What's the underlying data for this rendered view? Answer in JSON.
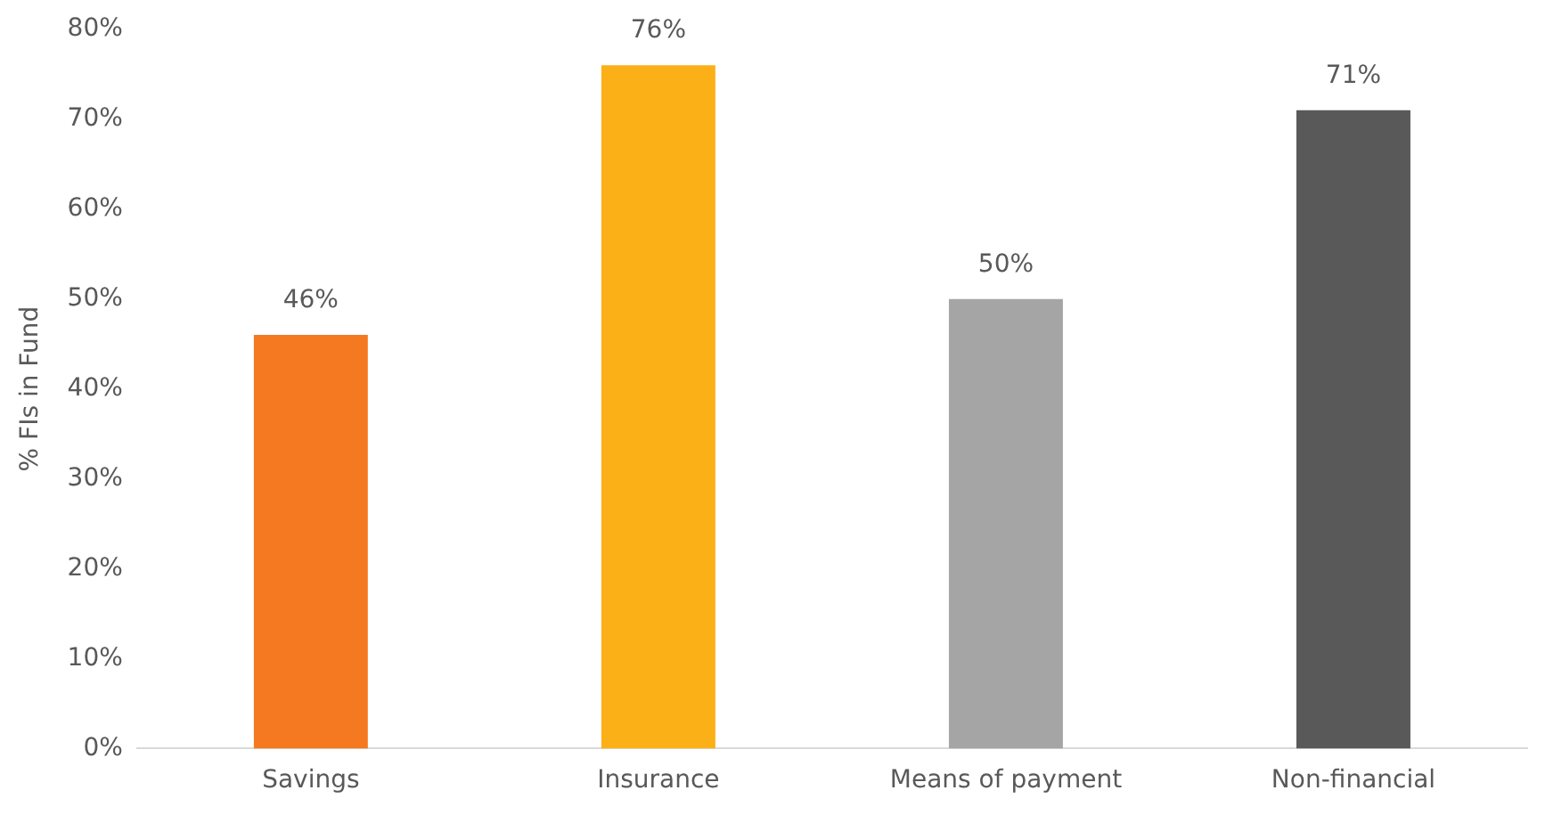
{
  "chart_data": {
    "type": "bar",
    "ylabel": "% FIs in Fund",
    "categories": [
      "Savings",
      "Insurance",
      "Means of payment",
      "Non-financial"
    ],
    "values": [
      46,
      76,
      50,
      71
    ],
    "colors": [
      "#f47920",
      "#fbb017",
      "#a5a5a5",
      "#595959"
    ],
    "value_labels": [
      "46%",
      "76%",
      "50%",
      "71%"
    ],
    "ylim": [
      0,
      80
    ],
    "yticks": [
      {
        "value": 0,
        "label": "0%"
      },
      {
        "value": 10,
        "label": "10%"
      },
      {
        "value": 20,
        "label": "20%"
      },
      {
        "value": 30,
        "label": "30%"
      },
      {
        "value": 40,
        "label": "40%"
      },
      {
        "value": 50,
        "label": "50%"
      },
      {
        "value": 60,
        "label": "60%"
      },
      {
        "value": 70,
        "label": "70%"
      },
      {
        "value": 80,
        "label": "80%"
      }
    ],
    "grid": false
  }
}
